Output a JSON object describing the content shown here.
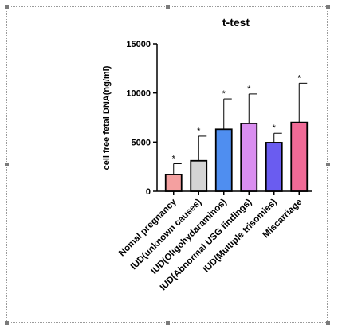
{
  "chart_data": {
    "type": "bar",
    "title": "t-test",
    "xlabel": "",
    "ylabel": "cell free fetal DNA(ng/ml)",
    "ylim": [
      0,
      15000
    ],
    "yticks": [
      0,
      5000,
      10000,
      15000
    ],
    "ytick_labels": [
      "0",
      "5000",
      "10000",
      "15000"
    ],
    "categories": [
      "Nomal pregnancy",
      "IUD(unknown causes)",
      "IUD(Oligohydaraminos)",
      "IUD(Abnormal USG findings)",
      "IUD(Multiple trisomies)",
      "Miscarriage"
    ],
    "values": [
      1700,
      3100,
      6300,
      6900,
      4950,
      7000
    ],
    "error_upper": [
      2800,
      5600,
      9400,
      9900,
      5900,
      11000
    ],
    "significance": [
      "*",
      "*",
      "*",
      "*",
      "*",
      "*"
    ],
    "colors": [
      "#f4a0a0",
      "#d4d4d4",
      "#4f8ef0",
      "#d98ef0",
      "#6a5cf0",
      "#f06a96"
    ],
    "grid": false,
    "legend": "none"
  }
}
